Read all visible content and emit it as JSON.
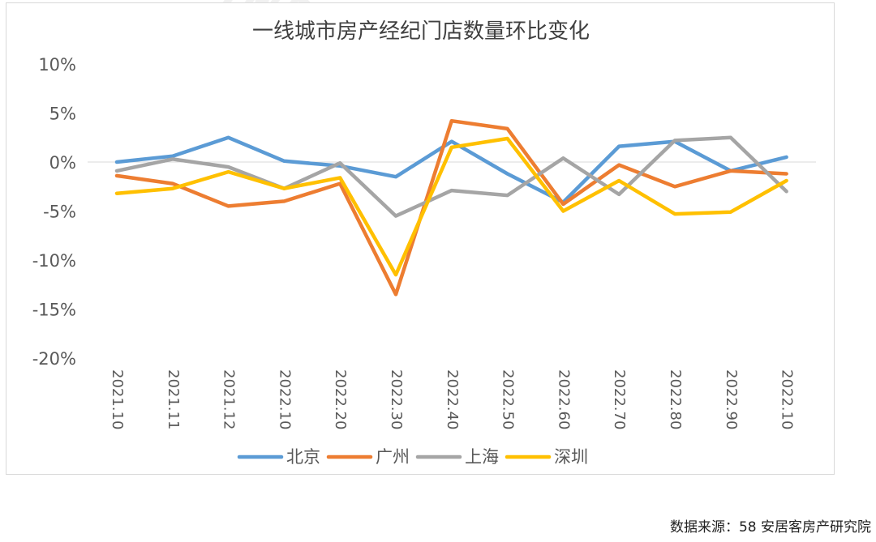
{
  "source": "数据来源：58 安居客房产研究院",
  "watermark": "安居客房产研究院",
  "chart_data": {
    "type": "line",
    "title": "一线城市房产经纪门店数量环比变化",
    "categories": [
      "2021.10",
      "2021.11",
      "2021.12",
      "2022.10",
      "2022.20",
      "2022.30",
      "2022.40",
      "2022.50",
      "2022.60",
      "2022.70",
      "2022.80",
      "2022.90",
      "2022.10"
    ],
    "ylim": [
      -20,
      10
    ],
    "yticks": [
      10,
      5,
      0,
      -5,
      -10,
      -15,
      -20
    ],
    "ytick_labels": [
      "10%",
      "5%",
      "0%",
      "-5%",
      "-10%",
      "-15%",
      "-20%"
    ],
    "legend_position": "bottom",
    "grid": false,
    "series": [
      {
        "name": "北京",
        "color": "#5b9bd5",
        "values": [
          0.0,
          0.6,
          2.5,
          0.1,
          -0.4,
          -1.5,
          2.1,
          -1.2,
          -4.1,
          1.6,
          2.1,
          -0.9,
          0.5
        ]
      },
      {
        "name": "广州",
        "color": "#ed7d31",
        "values": [
          -1.4,
          -2.2,
          -4.5,
          -4.0,
          -2.2,
          -13.5,
          4.2,
          3.4,
          -4.3,
          -0.3,
          -2.5,
          -0.9,
          -1.2
        ]
      },
      {
        "name": "上海",
        "color": "#a5a5a5",
        "values": [
          -0.9,
          0.3,
          -0.5,
          -2.7,
          -0.1,
          -5.5,
          -2.9,
          -3.4,
          0.4,
          -3.3,
          2.2,
          2.5,
          -3.0
        ]
      },
      {
        "name": "深圳",
        "color": "#ffc000",
        "values": [
          -3.2,
          -2.7,
          -1.0,
          -2.7,
          -1.6,
          -11.5,
          1.5,
          2.4,
          -5.0,
          -1.9,
          -5.3,
          -5.1,
          -1.9
        ]
      }
    ]
  }
}
